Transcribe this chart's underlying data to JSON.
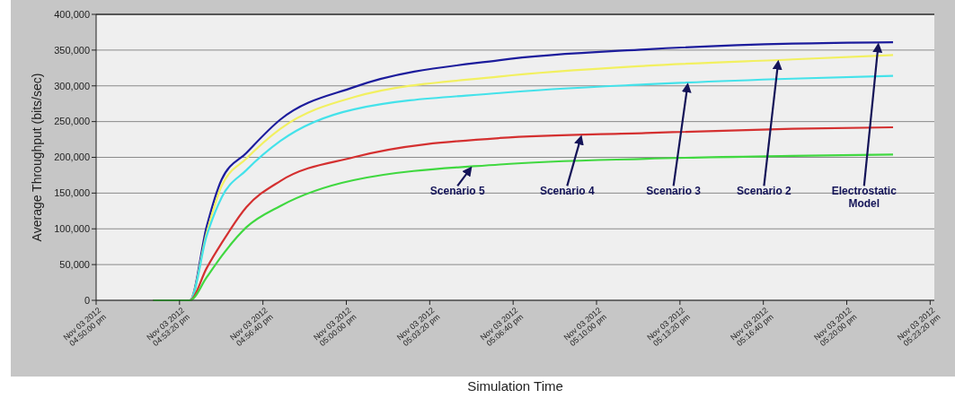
{
  "chart_data": {
    "type": "line",
    "xlabel": "Simulation Time",
    "ylabel": "Average Throughput (bits/sec)",
    "x": [
      "2012-11-03T16:52:17",
      "2012-11-03T16:53:45",
      "2012-11-03T16:54:25",
      "2012-11-03T16:55:01",
      "2012-11-03T16:56:00",
      "2012-11-03T16:57:22",
      "2012-11-03T17:00:17",
      "2012-11-03T17:06:08",
      "2012-11-03T17:11:58",
      "2012-11-03T17:17:50",
      "2012-11-03T17:21:51"
    ],
    "xlim": [
      "2012-11-03T16:50:00",
      "2012-11-03T17:23:30"
    ],
    "xticks": [
      {
        "value": "2012-11-03T16:50:00",
        "label": "Nov 03 2012\n04:50:00 pm"
      },
      {
        "value": "2012-11-03T16:53:20",
        "label": "Nov 03 2012\n04:53:20 pm"
      },
      {
        "value": "2012-11-03T16:56:40",
        "label": "Nov 03 2012\n04:56:40 pm"
      },
      {
        "value": "2012-11-03T17:00:00",
        "label": "Nov 03 2012\n05:00:00 pm"
      },
      {
        "value": "2012-11-03T17:03:20",
        "label": "Nov 03 2012\n05:03:20 pm"
      },
      {
        "value": "2012-11-03T17:06:40",
        "label": "Nov 03 2012\n05:06:40 pm"
      },
      {
        "value": "2012-11-03T17:10:00",
        "label": "Nov 03 2012\n05:10:00 pm"
      },
      {
        "value": "2012-11-03T17:13:20",
        "label": "Nov 03 2012\n05:13:20 pm"
      },
      {
        "value": "2012-11-03T17:16:40",
        "label": "Nov 03 2012\n05:16:40 pm"
      },
      {
        "value": "2012-11-03T17:20:00",
        "label": "Nov 03 2012\n05:20:00 pm"
      },
      {
        "value": "2012-11-03T17:23:20",
        "label": "Nov 03 2012\n05:23:20 pm"
      }
    ],
    "ylim": [
      0,
      400000
    ],
    "yticks": [
      {
        "value": 0,
        "label": "0"
      },
      {
        "value": 50000,
        "label": "50,000"
      },
      {
        "value": 100000,
        "label": "100,000"
      },
      {
        "value": 150000,
        "label": "150,000"
      },
      {
        "value": 200000,
        "label": "200,000"
      },
      {
        "value": 250000,
        "label": "250,000"
      },
      {
        "value": 300000,
        "label": "300,000"
      },
      {
        "value": 350000,
        "label": "350,000"
      },
      {
        "value": 400000,
        "label": "400,000"
      }
    ],
    "grid": "y",
    "line_style": "solid",
    "marker": "none",
    "series": [
      {
        "color": "#1c1c9c",
        "values": [
          0,
          0,
          103000,
          169000,
          206000,
          253000,
          298000,
          336000,
          351000,
          359000,
          361000
        ]
      },
      {
        "color": "#f2f060",
        "values": [
          0,
          0,
          94000,
          160000,
          198000,
          240000,
          284000,
          313000,
          328000,
          337000,
          343000
        ]
      },
      {
        "color": "#44e2ea",
        "values": [
          0,
          0,
          90000,
          144000,
          182000,
          223000,
          267000,
          290000,
          302000,
          310000,
          314000
        ]
      },
      {
        "color": "#d43030",
        "values": [
          0,
          0,
          45000,
          80000,
          130000,
          167000,
          200000,
          227000,
          234000,
          240000,
          242000
        ]
      },
      {
        "color": "#40d840",
        "values": [
          0,
          0,
          32000,
          62000,
          102000,
          132000,
          168000,
          190000,
          198000,
          202000,
          204000
        ]
      }
    ],
    "annotations": [
      {
        "text": "Scenario 5",
        "x": "2012-11-03T17:05:01",
        "y": 187000
      },
      {
        "text": "Scenario 4",
        "x": "2012-11-03T17:09:24",
        "y": 231000
      },
      {
        "text": "Scenario 3",
        "x": "2012-11-03T17:13:39",
        "y": 304000
      },
      {
        "text": "Scenario 2",
        "x": "2012-11-03T17:17:16",
        "y": 336000
      },
      {
        "text": "Electrostatic\nModel",
        "x": "2012-11-03T17:21:16",
        "y": 360000
      }
    ]
  }
}
